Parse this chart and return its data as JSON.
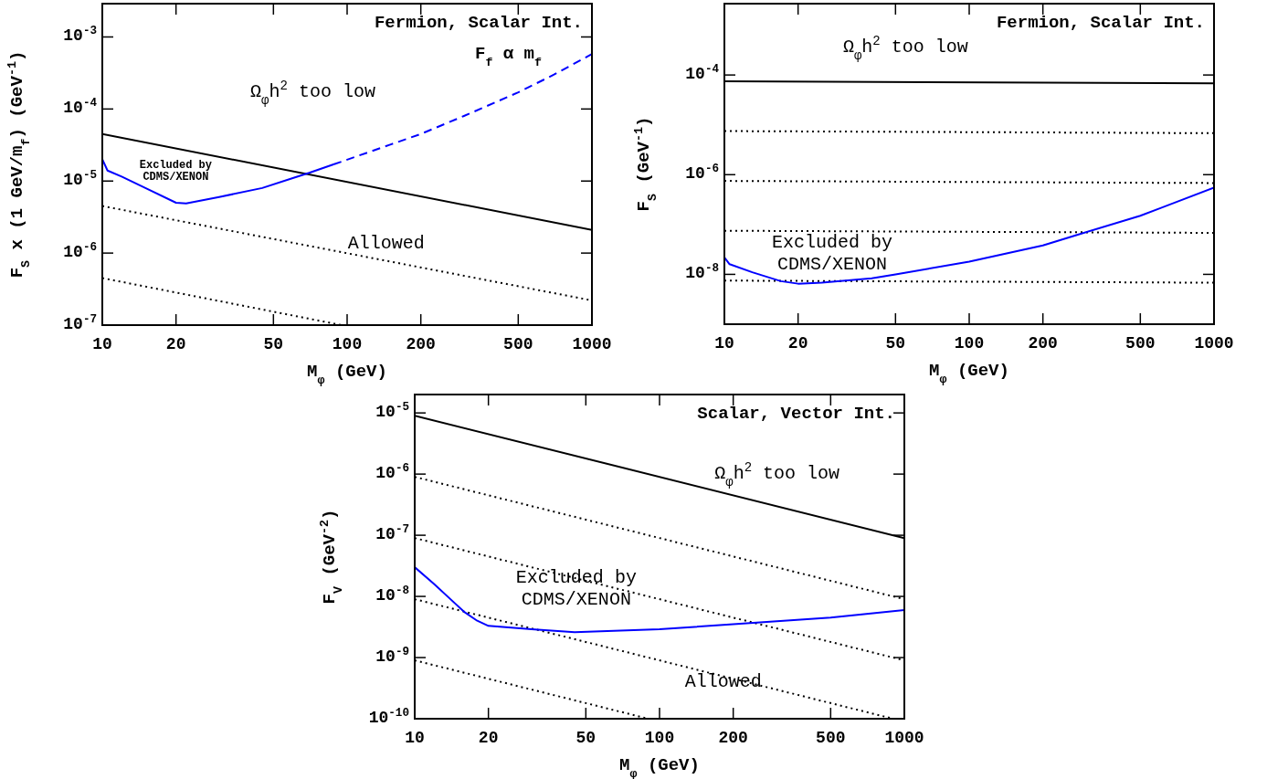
{
  "chart_data": [
    {
      "type": "line",
      "title": "Fermion, Scalar Int.",
      "subtitle": "F$_{f}$ α m$_{f}$",
      "xlabel": "M$_{φ}$ (GeV)",
      "ylabel": "F$_{S}$ x (1 GeV/m$_{f}$) (GeV$^{-1}$)",
      "log": "xy",
      "xlim": [
        10,
        1000
      ],
      "ylim": [
        1e-07,
        0.0029
      ],
      "xticks": [
        10,
        20,
        50,
        100,
        200,
        500,
        1000
      ],
      "yticks": [
        {
          "value": 1e-07,
          "label": "10$^{-7}$"
        },
        {
          "value": 1e-06,
          "label": "10$^{-6}$"
        },
        {
          "value": 1e-05,
          "label": "10$^{-5}$"
        },
        {
          "value": 0.0001,
          "label": "10$^{-4}$"
        },
        {
          "value": 0.001,
          "label": "10$^{-3}$"
        }
      ],
      "grid": false,
      "marker": "none",
      "annotations": [
        "Ω$_{φ}$h$^{2}$ too low",
        "Excluded by\nCDMS/XENON",
        "Allowed"
      ],
      "series": [
        {
          "color": "#000000",
          "line_style": "solid",
          "x": [
            10,
            1000
          ],
          "values": [
            4.5e-05,
            2.1e-06
          ]
        },
        {
          "color": "#000000",
          "line_style": "dotted",
          "x": [
            10,
            1000
          ],
          "values": [
            4.5e-06,
            2.2e-07
          ]
        },
        {
          "color": "#000000",
          "line_style": "dotted",
          "x": [
            10,
            95
          ],
          "values": [
            4.5e-07,
            1e-07
          ]
        },
        {
          "color": "#0000ff",
          "line_style": "solid",
          "x": [
            10,
            10.5,
            12,
            15,
            20,
            22,
            30,
            45,
            60,
            70,
            88
          ],
          "values": [
            2e-05,
            1.4e-05,
            1.15e-05,
            8e-06,
            5e-06,
            4.9e-06,
            6e-06,
            8e-06,
            1.1e-05,
            1.3e-05,
            1.7e-05
          ]
        },
        {
          "color": "#0000ff",
          "line_style": "dashed",
          "x": [
            88,
            150,
            200,
            300,
            500,
            700,
            1000
          ],
          "values": [
            1.7e-05,
            3.2e-05,
            4.5e-05,
            8e-05,
            0.00017,
            0.0003,
            0.00058
          ]
        }
      ]
    },
    {
      "type": "line",
      "title": "Fermion, Scalar Int.",
      "xlabel": "M$_{φ}$ (GeV)",
      "ylabel": "F$_{S}$ (GeV$^{-1}$)",
      "log": "xy",
      "xlim": [
        10,
        1000
      ],
      "ylim": [
        1e-09,
        0.0027
      ],
      "xticks": [
        10,
        20,
        50,
        100,
        200,
        500,
        1000
      ],
      "yticks": [
        {
          "value": 1e-08,
          "label": "10$^{-8}$"
        },
        {
          "value": 1e-06,
          "label": "10$^{-6}$"
        },
        {
          "value": 0.0001,
          "label": "10$^{-4}$"
        }
      ],
      "grid": false,
      "marker": "none",
      "annotations": [
        "Ω$_{φ}$h$^{2}$ too low",
        "Excluded by\nCDMS/XENON"
      ],
      "series": [
        {
          "color": "#000000",
          "line_style": "solid",
          "x": [
            10,
            1000
          ],
          "values": [
            7.5e-05,
            6.8e-05
          ]
        },
        {
          "color": "#000000",
          "line_style": "dotted",
          "x": [
            10,
            1000
          ],
          "values": [
            7.5e-06,
            6.8e-06
          ]
        },
        {
          "color": "#000000",
          "line_style": "dotted",
          "x": [
            10,
            1000
          ],
          "values": [
            7.5e-07,
            6.8e-07
          ]
        },
        {
          "color": "#000000",
          "line_style": "dotted",
          "x": [
            10,
            1000
          ],
          "values": [
            7.5e-08,
            6.8e-08
          ]
        },
        {
          "color": "#000000",
          "line_style": "dotted",
          "x": [
            10,
            1000
          ],
          "values": [
            7.5e-09,
            6.8e-09
          ]
        },
        {
          "color": "#0000ff",
          "line_style": "solid",
          "x": [
            10,
            10.5,
            13,
            17,
            20,
            25,
            40,
            50,
            100,
            200,
            270,
            500,
            1000
          ],
          "values": [
            2.2e-08,
            1.6e-08,
            1.1e-08,
            7.3e-09,
            6.5e-09,
            6.8e-09,
            8.3e-09,
            1e-08,
            1.8e-08,
            3.8e-08,
            6e-08,
            1.5e-07,
            5.5e-07
          ]
        }
      ]
    },
    {
      "type": "line",
      "title": "Scalar, Vector Int.",
      "xlabel": "M$_{φ}$ (GeV)",
      "ylabel": "F$_{V}$ (GeV$^{-2}$)",
      "log": "xy",
      "xlim": [
        10,
        1000
      ],
      "ylim": [
        1e-10,
        2e-05
      ],
      "xticks": [
        10,
        20,
        50,
        100,
        200,
        500,
        1000
      ],
      "yticks": [
        {
          "value": 1e-10,
          "label": "10$^{-10}$"
        },
        {
          "value": 1e-09,
          "label": "10$^{-9}$"
        },
        {
          "value": 1e-08,
          "label": "10$^{-8}$"
        },
        {
          "value": 1e-07,
          "label": "10$^{-7}$"
        },
        {
          "value": 1e-06,
          "label": "10$^{-6}$"
        },
        {
          "value": 1e-05,
          "label": "10$^{-5}$"
        }
      ],
      "grid": false,
      "marker": "none",
      "annotations": [
        "Ω$_{φ}$h$^{2}$ too low",
        "Excluded by\nCDMS/XENON",
        "Allowed"
      ],
      "series": [
        {
          "color": "#000000",
          "line_style": "solid",
          "x": [
            10,
            1000
          ],
          "values": [
            9e-06,
            9e-08
          ]
        },
        {
          "color": "#000000",
          "line_style": "dotted",
          "x": [
            10,
            1000
          ],
          "values": [
            9e-07,
            9e-09
          ]
        },
        {
          "color": "#000000",
          "line_style": "dotted",
          "x": [
            10,
            1000
          ],
          "values": [
            9e-08,
            9e-10
          ]
        },
        {
          "color": "#000000",
          "line_style": "dotted",
          "x": [
            10,
            900
          ],
          "values": [
            9e-09,
            1e-10
          ]
        },
        {
          "color": "#000000",
          "line_style": "dotted",
          "x": [
            10,
            90
          ],
          "values": [
            9e-10,
            1e-10
          ]
        },
        {
          "color": "#0000ff",
          "line_style": "solid",
          "x": [
            10,
            12,
            14,
            16,
            18,
            20,
            30,
            45,
            100,
            200,
            500,
            1000
          ],
          "values": [
            3e-08,
            1.6e-08,
            9e-09,
            5.5e-09,
            4e-09,
            3.3e-09,
            2.9e-09,
            2.6e-09,
            2.9e-09,
            3.5e-09,
            4.5e-09,
            6e-09
          ]
        }
      ]
    }
  ]
}
